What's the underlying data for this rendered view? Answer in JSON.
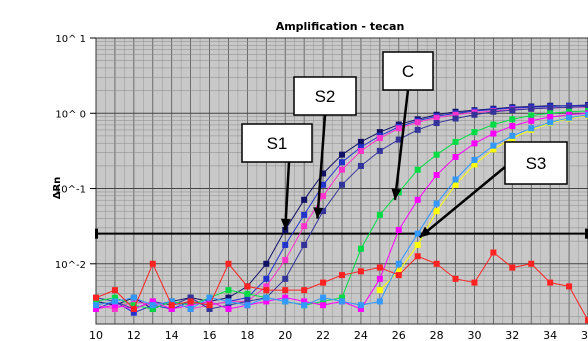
{
  "chart_data": {
    "type": "line",
    "title": "Amplification - tecan",
    "ylabel": "ΔRn",
    "xlabel": "",
    "xlim": [
      10,
      36
    ],
    "ylim_log10": [
      -2.8,
      1.0
    ],
    "y_scale": "log",
    "grid": true,
    "x_ticks": [
      "10",
      "12",
      "14",
      "16",
      "18",
      "20",
      "22",
      "24",
      "26",
      "28",
      "30",
      "32",
      "34",
      "36"
    ],
    "y_ticks": [
      {
        "label": "10^ 1",
        "exp": 1
      },
      {
        "label": "10^ 0",
        "exp": 0
      },
      {
        "label": "10^-1",
        "exp": -1
      },
      {
        "label": "10^-2",
        "exp": -2
      }
    ],
    "threshold_exp": -1.6,
    "annotations": [
      {
        "text": "S1",
        "target": [
          20,
          -1.55
        ]
      },
      {
        "text": "S2",
        "target": [
          21.7,
          -1.4
        ]
      },
      {
        "text": "C",
        "target": [
          25.8,
          -1.15
        ]
      },
      {
        "text": "S3",
        "target": [
          27.1,
          -1.65
        ]
      }
    ],
    "series": [
      {
        "color": "#111166",
        "x": [
          10,
          11,
          12,
          13,
          14,
          15,
          16,
          17,
          18,
          19,
          20,
          21,
          22,
          23,
          24,
          25,
          26,
          27,
          28,
          29,
          30,
          31,
          32,
          33,
          34,
          35,
          36
        ],
        "log10_y": [
          -2.5,
          -2.55,
          -2.45,
          -2.6,
          -2.5,
          -2.45,
          -2.5,
          -2.45,
          -2.3,
          -2.0,
          -1.55,
          -1.15,
          -0.8,
          -0.55,
          -0.38,
          -0.25,
          -0.15,
          -0.08,
          -0.02,
          0.02,
          0.04,
          0.06,
          0.08,
          0.09,
          0.1,
          0.1,
          0.11
        ]
      },
      {
        "color": "#2233cc",
        "x": [
          10,
          11,
          12,
          13,
          14,
          15,
          16,
          17,
          18,
          19,
          20,
          21,
          22,
          23,
          24,
          25,
          26,
          27,
          28,
          29,
          30,
          31,
          32,
          33,
          34,
          35,
          36
        ],
        "log10_y": [
          -2.6,
          -2.5,
          -2.65,
          -2.55,
          -2.6,
          -2.5,
          -2.55,
          -2.5,
          -2.45,
          -2.2,
          -1.75,
          -1.35,
          -0.95,
          -0.65,
          -0.45,
          -0.3,
          -0.18,
          -0.1,
          -0.04,
          0.0,
          0.03,
          0.05,
          0.07,
          0.08,
          0.09,
          0.1,
          0.1
        ]
      },
      {
        "color": "#ff33cc",
        "x": [
          10,
          11,
          12,
          13,
          14,
          15,
          16,
          17,
          18,
          19,
          20,
          21,
          22,
          23,
          24,
          25,
          26,
          27,
          28,
          29,
          30,
          31,
          32,
          33,
          34,
          35,
          36
        ],
        "log10_y": [
          -2.55,
          -2.6,
          -2.5,
          -2.55,
          -2.5,
          -2.6,
          -2.55,
          -2.5,
          -2.5,
          -2.3,
          -1.95,
          -1.5,
          -1.1,
          -0.75,
          -0.5,
          -0.33,
          -0.2,
          -0.12,
          -0.06,
          -0.02,
          0.01,
          0.03,
          0.05,
          0.06,
          0.07,
          0.08,
          0.08
        ]
      },
      {
        "color": "#333399",
        "x": [
          10,
          11,
          12,
          13,
          14,
          15,
          16,
          17,
          18,
          19,
          20,
          21,
          22,
          23,
          24,
          25,
          26,
          27,
          28,
          29,
          30,
          31,
          32,
          33,
          34,
          35,
          36
        ],
        "log10_y": [
          -2.45,
          -2.5,
          -2.6,
          -2.5,
          -2.55,
          -2.45,
          -2.6,
          -2.55,
          -2.5,
          -2.45,
          -2.2,
          -1.75,
          -1.3,
          -0.95,
          -0.7,
          -0.5,
          -0.35,
          -0.22,
          -0.13,
          -0.07,
          -0.02,
          0.02,
          0.04,
          0.06,
          0.07,
          0.08,
          0.09
        ]
      },
      {
        "color": "#00dd44",
        "x": [
          10,
          11,
          12,
          13,
          14,
          15,
          16,
          17,
          18,
          19,
          20,
          21,
          22,
          23,
          24,
          25,
          26,
          27,
          28,
          29,
          30,
          31,
          32,
          33,
          34,
          35,
          36
        ],
        "log10_y": [
          -2.5,
          -2.45,
          -2.55,
          -2.6,
          -2.5,
          -2.55,
          -2.45,
          -2.35,
          -2.4,
          -2.45,
          -2.5,
          -2.55,
          -2.5,
          -2.45,
          -1.8,
          -1.35,
          -1.05,
          -0.75,
          -0.55,
          -0.38,
          -0.25,
          -0.15,
          -0.08,
          -0.03,
          0.0,
          0.02,
          0.03
        ]
      },
      {
        "color": "#ff00ff",
        "x": [
          10,
          11,
          12,
          13,
          14,
          15,
          16,
          17,
          18,
          19,
          20,
          21,
          22,
          23,
          24,
          25,
          26,
          27,
          28,
          29,
          30,
          31,
          32,
          33,
          34,
          35,
          36
        ],
        "log10_y": [
          -2.6,
          -2.55,
          -2.6,
          -2.5,
          -2.6,
          -2.55,
          -2.5,
          -2.6,
          -2.55,
          -2.5,
          -2.45,
          -2.5,
          -2.55,
          -2.5,
          -2.6,
          -2.2,
          -1.55,
          -1.15,
          -0.82,
          -0.58,
          -0.4,
          -0.27,
          -0.17,
          -0.1,
          -0.05,
          -0.02,
          0.0
        ]
      },
      {
        "color": "#ffff00",
        "x": [
          25,
          26,
          27,
          28,
          29,
          30,
          31,
          32,
          33,
          34,
          35,
          36
        ],
        "log10_y": [
          -2.35,
          -2.1,
          -1.75,
          -1.3,
          -0.95,
          -0.68,
          -0.48,
          -0.33,
          -0.22,
          -0.13,
          -0.07,
          -0.03
        ]
      },
      {
        "color": "#3399ff",
        "x": [
          10,
          11,
          12,
          13,
          14,
          15,
          16,
          17,
          18,
          19,
          20,
          21,
          22,
          23,
          24,
          25,
          26,
          27,
          28,
          29,
          30,
          31,
          32,
          33,
          34,
          35,
          36
        ],
        "log10_y": [
          -2.55,
          -2.5,
          -2.45,
          -2.55,
          -2.5,
          -2.6,
          -2.45,
          -2.5,
          -2.55,
          -2.45,
          -2.5,
          -2.55,
          -2.45,
          -2.5,
          -2.55,
          -2.5,
          -2.0,
          -1.6,
          -1.2,
          -0.88,
          -0.62,
          -0.43,
          -0.3,
          -0.2,
          -0.12,
          -0.06,
          -0.02
        ]
      },
      {
        "color": "#ff2222",
        "x": [
          10,
          11,
          12,
          13,
          14,
          15,
          16,
          17,
          18,
          19,
          20,
          21,
          22,
          23,
          24,
          25,
          26,
          27,
          28,
          29,
          30,
          31,
          32,
          33,
          34,
          35,
          36
        ],
        "log10_y": [
          -2.45,
          -2.35,
          -2.6,
          -2.0,
          -2.55,
          -2.5,
          -2.55,
          -2.0,
          -2.3,
          -2.35,
          -2.35,
          -2.35,
          -2.25,
          -2.15,
          -2.1,
          -2.05,
          -2.15,
          -1.9,
          -2.0,
          -2.2,
          -2.25,
          -1.85,
          -2.05,
          -2.0,
          -2.25,
          -2.3,
          -2.75
        ]
      }
    ]
  }
}
